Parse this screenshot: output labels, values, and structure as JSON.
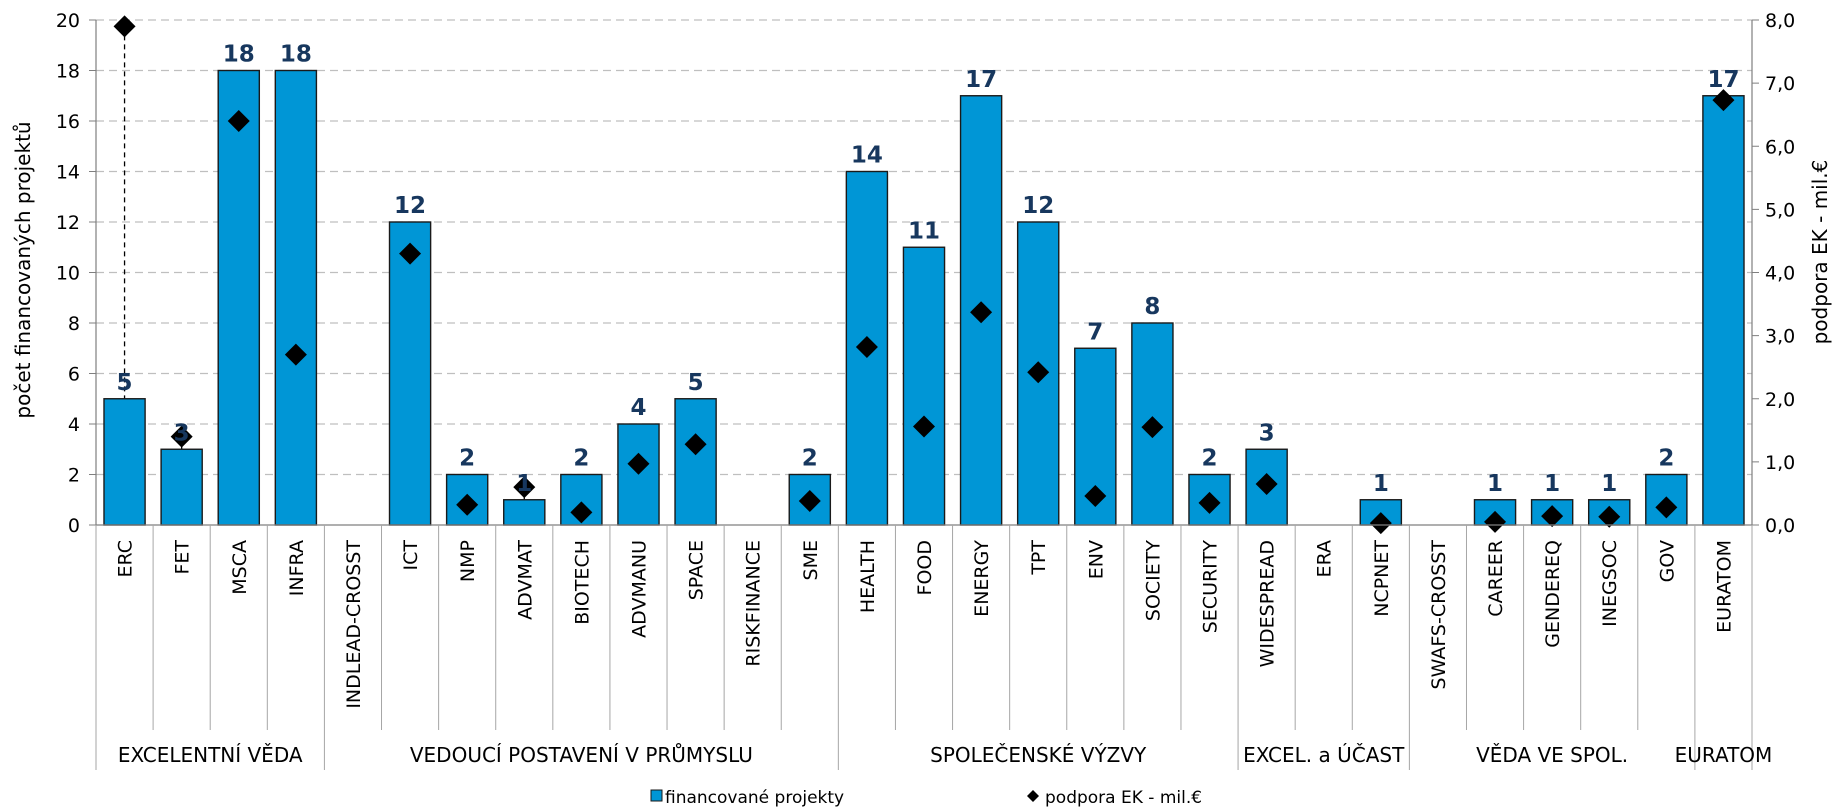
{
  "chart_data": {
    "type": "bar",
    "categories": [
      "ERC",
      "FET",
      "MSCA",
      "INFRA",
      "INDLEAD-CROSST",
      "ICT",
      "NMP",
      "ADVMAT",
      "BIOTECH",
      "ADVMANU",
      "SPACE",
      "RISKFINANCE",
      "SME",
      "HEALTH",
      "FOOD",
      "ENERGY",
      "TPT",
      "ENV",
      "SOCIETY",
      "SECURITY",
      "WIDESPREAD",
      "ERA",
      "NCPNET",
      "SWAFS-CROSST",
      "CAREER",
      "GENDEREQ",
      "INEGSOC",
      "GOV",
      "EURATOM"
    ],
    "groups": [
      {
        "label": "EXCELENTNÍ VĚDA",
        "start": 0,
        "end": 3
      },
      {
        "label": "VEDOUCÍ POSTAVENÍ V PRŮMYSLU",
        "start": 4,
        "end": 12
      },
      {
        "label": "SPOLEČENSKÉ VÝZVY",
        "start": 13,
        "end": 19
      },
      {
        "label": "EXCEL. a ÚČAST",
        "start": 20,
        "end": 22
      },
      {
        "label": "VĚDA VE SPOL.",
        "start": 23,
        "end": 27
      },
      {
        "label": "EURATOM",
        "start": 28,
        "end": 28
      }
    ],
    "series": [
      {
        "name": "financované projekty",
        "kind": "bar",
        "axis": "left",
        "values": [
          5,
          3,
          18,
          18,
          null,
          12,
          2,
          1,
          2,
          4,
          5,
          null,
          2,
          14,
          11,
          17,
          12,
          7,
          8,
          2,
          3,
          null,
          1,
          null,
          1,
          1,
          1,
          2,
          17
        ]
      },
      {
        "name": "podpora EK - mil.€",
        "kind": "marker",
        "axis": "right",
        "values": [
          7.9,
          1.4,
          6.4,
          2.7,
          null,
          4.3,
          0.32,
          0.6,
          0.2,
          0.97,
          1.28,
          null,
          0.38,
          2.82,
          1.56,
          3.37,
          2.42,
          0.46,
          1.55,
          0.35,
          0.65,
          null,
          0.03,
          null,
          0.05,
          0.14,
          0.13,
          0.28,
          6.73
        ]
      }
    ],
    "ylabel": "počet  financovaných  projektů",
    "y2label": "podpora EK - mil.€",
    "ylim": [
      0,
      20
    ],
    "y2lim": [
      0,
      8
    ],
    "yticks": [
      "0",
      "2",
      "4",
      "6",
      "8",
      "10",
      "12",
      "14",
      "16",
      "18",
      "20"
    ],
    "y2ticks": [
      "0,0",
      "1,0",
      "2,0",
      "3,0",
      "4,0",
      "5,0",
      "6,0",
      "7,0",
      "8,0"
    ],
    "grid": true,
    "legend_position": "bottom",
    "colors": {
      "bar": "#0096D6",
      "bar_stroke": "#1A1A1A",
      "marker": "#000000",
      "label": "#17375E",
      "grid": "#BFBFBF"
    }
  }
}
